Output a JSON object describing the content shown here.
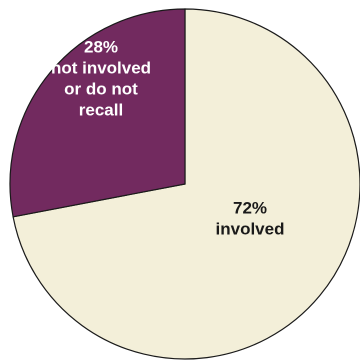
{
  "chart_data": {
    "type": "pie",
    "title": "",
    "slices": [
      {
        "label_lines": [
          "72%",
          "involved"
        ],
        "value": 72,
        "color": "#f3efd9",
        "text_color": "#1a1a1a"
      },
      {
        "label_lines": [
          "28%",
          "not involved",
          "or do not",
          "recall"
        ],
        "value": 28,
        "color": "#722a5f",
        "text_color": "#ffffff"
      }
    ],
    "start_angle_deg": 0,
    "direction": "clockwise",
    "legend": "none"
  }
}
